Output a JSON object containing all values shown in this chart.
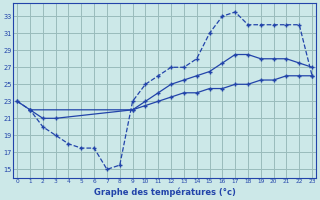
{
  "title": "Graphe des températures (°c)",
  "bg_color": "#cce8e8",
  "grid_color": "#99bbbb",
  "line_color": "#2244aa",
  "x_ticks": [
    0,
    1,
    2,
    3,
    4,
    5,
    6,
    7,
    8,
    9,
    10,
    11,
    12,
    13,
    14,
    15,
    16,
    17,
    18,
    19,
    20,
    21,
    22,
    23
  ],
  "y_ticks": [
    15,
    17,
    19,
    21,
    23,
    25,
    27,
    29,
    31,
    33
  ],
  "ylim": [
    14.0,
    34.5
  ],
  "xlim": [
    -0.3,
    23.3
  ],
  "curve1_x": [
    0,
    1,
    2,
    3,
    4,
    5,
    6,
    7,
    8,
    9,
    10,
    11,
    12,
    13,
    14,
    15,
    16,
    17,
    18,
    19,
    20,
    21,
    22,
    23
  ],
  "curve1_y": [
    23,
    22,
    20,
    19,
    18,
    17.5,
    17.5,
    15,
    15.5,
    23,
    25,
    26,
    27,
    27,
    28,
    31,
    33,
    33.5,
    32,
    32,
    32,
    32,
    32,
    26
  ],
  "curve2_x": [
    1,
    2,
    3,
    9,
    10,
    11,
    12,
    13,
    14,
    15,
    16,
    17,
    18,
    19,
    20,
    21,
    22,
    23
  ],
  "curve2_y": [
    22,
    21,
    21,
    22,
    23,
    24,
    25,
    25.5,
    26,
    26.5,
    27.5,
    28.5,
    28.5,
    28,
    28,
    28,
    27.5,
    27
  ],
  "curve3_x": [
    0,
    1,
    9,
    10,
    11,
    12,
    13,
    14,
    15,
    16,
    17,
    18,
    19,
    20,
    21,
    22,
    23
  ],
  "curve3_y": [
    23,
    22,
    22,
    22.5,
    23,
    23.5,
    24,
    24,
    24.5,
    24.5,
    25,
    25,
    25.5,
    25.5,
    26,
    26,
    26
  ]
}
